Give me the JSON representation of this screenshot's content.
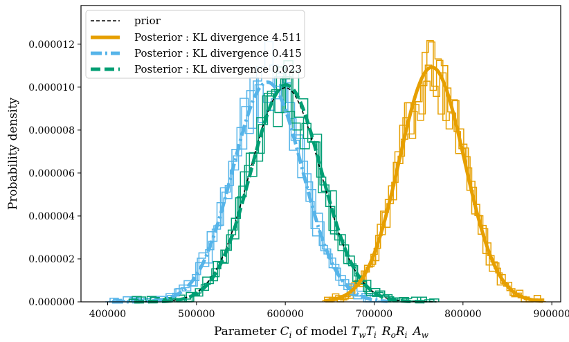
{
  "chart_data": {
    "type": "line",
    "title": "",
    "xlabel": "Parameter Ci of model TwTi RoRi Aw",
    "xlabel_parts": {
      "prefix": "Parameter ",
      "symbol": "C",
      "symbol_sub": "i",
      "middle": " of model ",
      "model_terms": [
        {
          "base": "T",
          "sub": "w"
        },
        {
          "base": "T",
          "sub": "i"
        },
        {
          "base": "R",
          "sub": "o"
        },
        {
          "base": "R",
          "sub": "i"
        },
        {
          "base": "A",
          "sub": "w"
        }
      ]
    },
    "ylabel": "Probability density",
    "xlim": [
      370000,
      910000
    ],
    "ylim": [
      0,
      1.38e-05
    ],
    "xticks": [
      400000,
      500000,
      600000,
      700000,
      800000,
      900000
    ],
    "xtick_labels": [
      "400000",
      "500000",
      "600000",
      "700000",
      "800000",
      "900000"
    ],
    "yticks": [
      0,
      2e-06,
      4e-06,
      6e-06,
      8e-06,
      1e-05,
      1.2e-05
    ],
    "ytick_labels": [
      "0.000000",
      "0.000002",
      "0.000004",
      "0.000006",
      "0.000008",
      "0.000010",
      "0.000012"
    ],
    "legend_position": "top-left",
    "legend": [
      {
        "label": "prior",
        "color": "#000000",
        "style": "dotted-dash"
      },
      {
        "label": "Posterior : KL divergence 4.511",
        "color": "#e69f00",
        "style": "solid"
      },
      {
        "label": "Posterior : KL divergence 0.415",
        "color": "#56b4e9",
        "style": "dash-dot"
      },
      {
        "label": "Posterior : KL divergence 0.023",
        "color": "#009e73",
        "style": "dashed"
      }
    ],
    "series": [
      {
        "name": "prior",
        "kind": "gaussian",
        "mean": 600000,
        "std": 40000,
        "color": "#000000",
        "range": [
          430000,
          770000
        ]
      },
      {
        "name": "Posterior : KL divergence 4.511",
        "kind": "gaussian",
        "mean": 765000,
        "std": 36500,
        "color": "#e69f00",
        "range": [
          645000,
          890000
        ],
        "hist_range": [
          645000,
          890000
        ]
      },
      {
        "name": "Posterior : KL divergence 0.415",
        "kind": "gaussian",
        "mean": 580000,
        "std": 39000,
        "color": "#56b4e9",
        "range": [
          405000,
          715000
        ],
        "hist_range": [
          400000,
          715000
        ]
      },
      {
        "name": "Posterior : KL divergence 0.023",
        "kind": "gaussian",
        "mean": 601000,
        "std": 39500,
        "color": "#009e73",
        "range": [
          430000,
          760000
        ],
        "hist_range": [
          425000,
          770000
        ]
      }
    ]
  }
}
